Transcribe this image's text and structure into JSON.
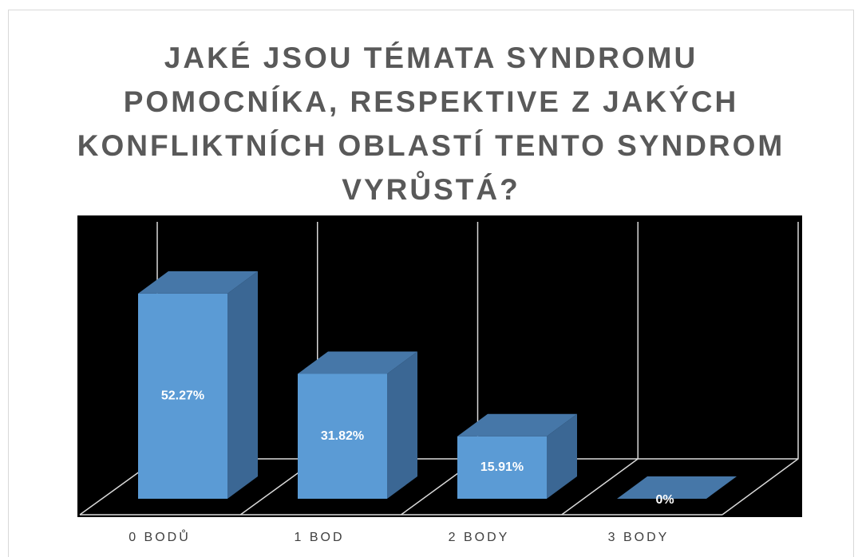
{
  "chart_data": {
    "type": "bar3d",
    "title": [
      "JAKÉ JSOU TÉMATA SYNDROMU",
      "POMOCNÍKA, RESPEKTIVE Z JAKÝCH",
      "KONFLIKTNÍCH OBLASTÍ TENTO SYNDROM",
      "VYRŮSTÁ?"
    ],
    "categories": [
      "0 BODŮ",
      "1 BOD",
      "2 BODY",
      "3 BODY"
    ],
    "values": [
      52.27,
      31.82,
      15.91,
      0
    ],
    "value_labels": [
      "52.27%",
      "31.82%",
      "15.91%",
      "0%"
    ],
    "color": "#5b9bd5"
  }
}
